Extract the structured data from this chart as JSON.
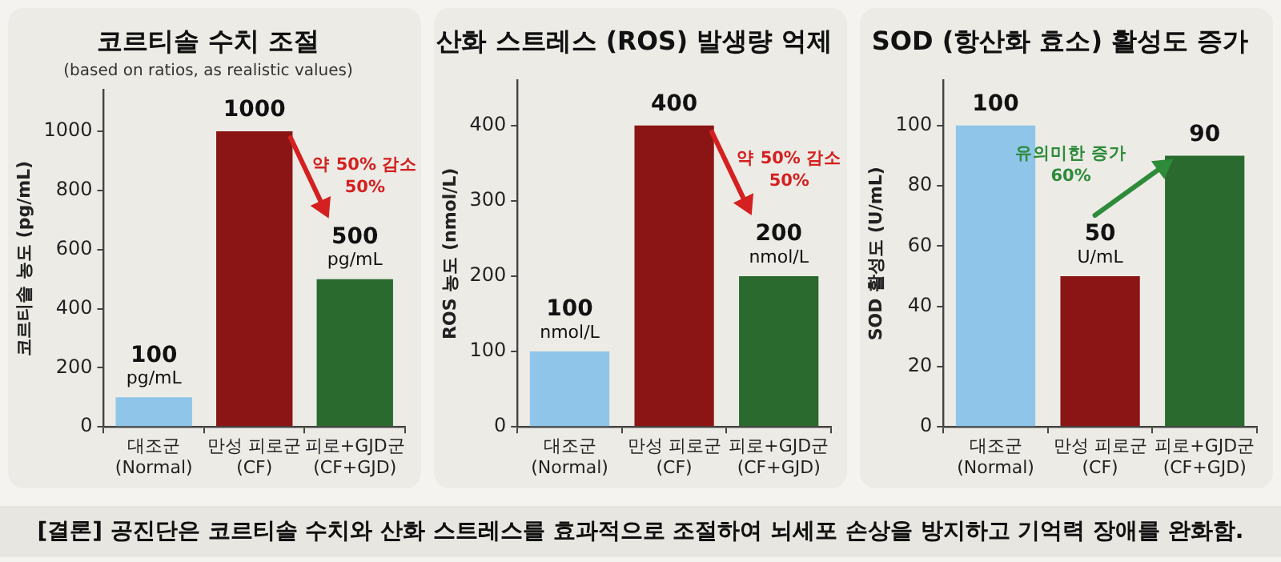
{
  "chart_data": [
    {
      "type": "bar",
      "title": "코르티솔 수치 조절",
      "subtitle": "(based on ratios, as realistic values)",
      "ylabel": "코르티솔 농도 (pg/mL)",
      "categories": [
        "대조군\n(Normal)",
        "만성 피로군\n(CF)",
        "피로+GJD군\n(CF+GJD)"
      ],
      "values": [
        100,
        1000,
        500
      ],
      "colors": [
        "#8ec5e8",
        "#8b1515",
        "#2a6a2e"
      ],
      "value_labels": [
        "100\npg/mL",
        "1000",
        "500\npg/mL"
      ],
      "ylim": [
        0,
        1140
      ],
      "yticks": [
        0,
        200,
        400,
        600,
        800,
        1000
      ],
      "annotations": [
        "약 50% 감소\n50%"
      ]
    },
    {
      "type": "bar",
      "title": "산화 스트레스 (ROS) 발생량 억제",
      "ylabel": "ROS 농도 (nmol/L)",
      "categories": [
        "대조군\n(Normal)",
        "만성 피로군\n(CF)",
        "피로+GJD군\n(CF+GJD)"
      ],
      "values": [
        100,
        400,
        200
      ],
      "colors": [
        "#8ec5e8",
        "#8b1515",
        "#2a6a2e"
      ],
      "value_labels": [
        "100\nnmol/L",
        "400",
        "200\nnmol/L"
      ],
      "ylim": [
        0,
        460
      ],
      "yticks": [
        0,
        100,
        200,
        300,
        400
      ],
      "annotations": [
        "약 50% 감소\n50%"
      ]
    },
    {
      "type": "bar",
      "title": "SOD (항산화 효소) 활성도 증가",
      "ylabel": "SOD 활성도 (U/mL)",
      "categories": [
        "대조군\n(Normal)",
        "만성 피로군\n(CF)",
        "피로+GJD군\n(CF+GJD)"
      ],
      "values": [
        100,
        50,
        90
      ],
      "colors": [
        "#8ec5e8",
        "#8b1515",
        "#2a6a2e"
      ],
      "value_labels": [
        "100",
        "50\nU/mL",
        "90"
      ],
      "ylim": [
        0,
        115
      ],
      "yticks": [
        0,
        20,
        40,
        60,
        80,
        100
      ],
      "annotations": [
        "유의미한 증가\n60%"
      ]
    },
    {
      "type": "other",
      "annotations": [
        "[결론] 공진단은 코르티솔 수치와 산화 스트레스를 효과적으로 조절하여 뇌세포 손상을 방지하고 기억력 장애를 완화함."
      ]
    }
  ]
}
